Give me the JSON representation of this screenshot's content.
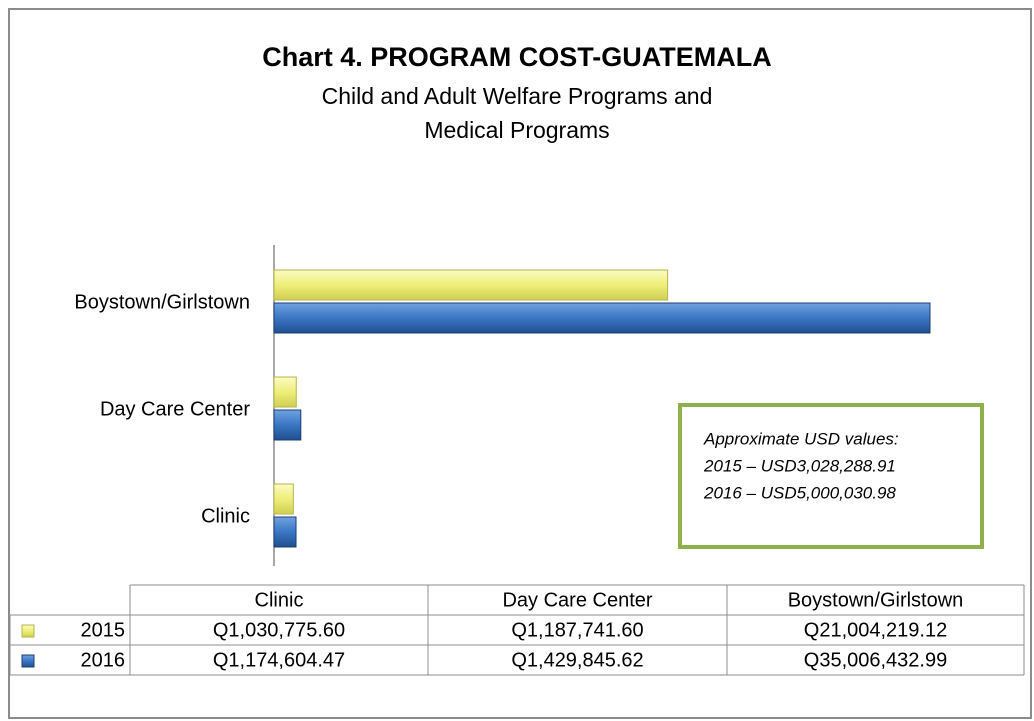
{
  "chart_data": {
    "type": "bar",
    "orientation": "horizontal",
    "title": "Chart 4. PROGRAM COST-GUATEMALA",
    "subtitle": "Child and Adult Welfare Programs and Medical Programs",
    "categories": [
      "Clinic",
      "Day Care Center",
      "Boystown/Girlstown"
    ],
    "series": [
      {
        "name": "2015",
        "color": "#eeee7a",
        "values": [
          1030775.6,
          1187741.6,
          21004219.12
        ],
        "value_labels": [
          "Q1,030,775.60",
          "Q1,187,741.60",
          "Q21,004,219.12"
        ]
      },
      {
        "name": "2016",
        "color": "#3a76c4",
        "values": [
          1174604.47,
          1429845.62,
          35006432.99
        ],
        "value_labels": [
          "Q1,174,604.47",
          "Q1,429,845.62",
          "Q35,006,432.99"
        ]
      }
    ],
    "annotations": [
      "Approximate USD values:",
      "2015 – USD3,028,288.91",
      "2016 – USD5,000,030.98"
    ],
    "data_table": true
  }
}
